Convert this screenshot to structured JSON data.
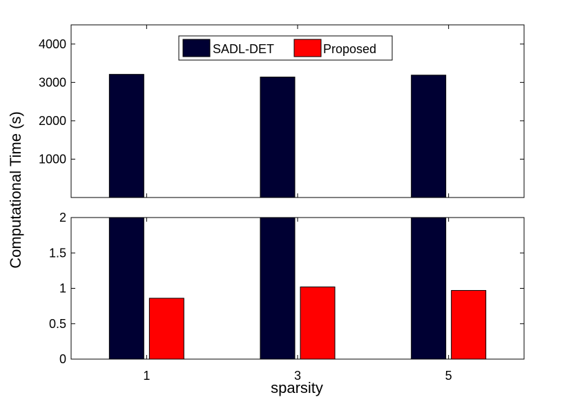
{
  "chart_data": {
    "type": "bar",
    "categories": [
      "1",
      "3",
      "5"
    ],
    "series": [
      {
        "name": "SADL-DET",
        "values": [
          3210,
          3140,
          3190
        ],
        "color": "#000033"
      },
      {
        "name": "Proposed",
        "values": [
          0.86,
          1.02,
          0.97
        ],
        "color": "#ff0000"
      }
    ],
    "xlabel": "sparsity",
    "ylabel": "Computational Time (s)",
    "broken_axis": true,
    "upper_panel": {
      "ylim": [
        0,
        4500
      ],
      "yticks": [
        1000,
        2000,
        3000,
        4000
      ]
    },
    "lower_panel": {
      "ylim": [
        0,
        2
      ],
      "yticks": [
        0,
        0.5,
        1,
        1.5,
        2
      ],
      "ytick_labels": [
        "0",
        "0.5",
        "1",
        "1.5",
        "2"
      ]
    },
    "legend_placement": "top-center",
    "grid": false
  }
}
